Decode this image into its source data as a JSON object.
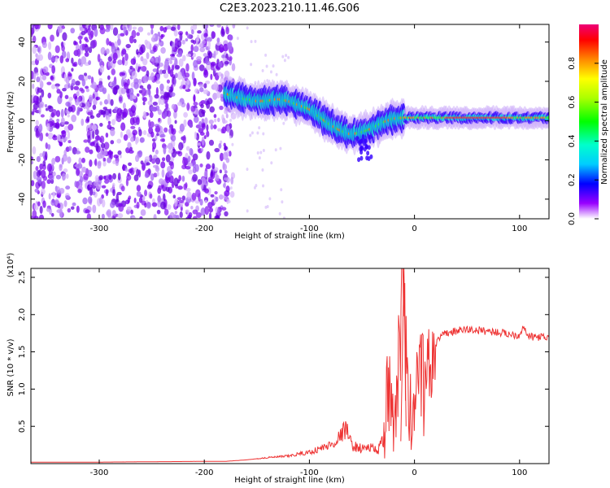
{
  "title": "C2E3.2023.210.11.46.G06",
  "chart_data": [
    {
      "type": "heatmap",
      "xlabel": "Height of straight line (km)",
      "ylabel": "Frequency (Hz)",
      "xlim": [
        -365,
        128
      ],
      "ylim": [
        -50,
        49
      ],
      "x_ticks": [
        -300,
        -200,
        -100,
        0,
        100
      ],
      "y_ticks": [
        -40,
        -20,
        0,
        20,
        40
      ],
      "colorbar": {
        "label": "Normalized spectral amplitude",
        "range": [
          0,
          1
        ],
        "ticks": [
          0.0,
          0.2,
          0.4,
          0.6,
          0.8
        ]
      },
      "noise_region_x": [
        -365,
        -178
      ],
      "signal_track": [
        {
          "x": -180,
          "y": 14
        },
        {
          "x": -170,
          "y": 12
        },
        {
          "x": -160,
          "y": 11
        },
        {
          "x": -150,
          "y": 10
        },
        {
          "x": -140,
          "y": 10
        },
        {
          "x": -130,
          "y": 11
        },
        {
          "x": -120,
          "y": 10
        },
        {
          "x": -110,
          "y": 8
        },
        {
          "x": -100,
          "y": 6
        },
        {
          "x": -90,
          "y": 2
        },
        {
          "x": -80,
          "y": -2
        },
        {
          "x": -70,
          "y": -5
        },
        {
          "x": -60,
          "y": -7
        },
        {
          "x": -50,
          "y": -6
        },
        {
          "x": -40,
          "y": -4
        },
        {
          "x": -30,
          "y": -1
        },
        {
          "x": -20,
          "y": 1
        },
        {
          "x": -10,
          "y": 1.5
        },
        {
          "x": 0,
          "y": 1.5
        },
        {
          "x": 20,
          "y": 1.5
        },
        {
          "x": 40,
          "y": 1.5
        },
        {
          "x": 60,
          "y": 1.5
        },
        {
          "x": 80,
          "y": 1.5
        },
        {
          "x": 100,
          "y": 1.5
        },
        {
          "x": 128,
          "y": 1.5
        }
      ]
    },
    {
      "type": "line",
      "xlabel": "Height of straight line (km)",
      "ylabel": "SNR (10 * v/v)",
      "y_scale_label": "(x10⁴)",
      "xlim": [
        -365,
        128
      ],
      "ylim": [
        0,
        2.62
      ],
      "x_ticks": [
        -300,
        -200,
        -100,
        0,
        100
      ],
      "y_ticks": [
        0.5,
        1.0,
        1.5,
        2.0,
        2.5
      ],
      "series": [
        {
          "color": "#ee3333",
          "x": [
            -365,
            -300,
            -250,
            -200,
            -180,
            -160,
            -140,
            -120,
            -110,
            -100,
            -90,
            -80,
            -75,
            -70,
            -65,
            -60,
            -55,
            -50,
            -45,
            -40,
            -35,
            -30,
            -25,
            -20,
            -15,
            -10,
            -5,
            0,
            5,
            10,
            15,
            20,
            25,
            30,
            40,
            50,
            60,
            70,
            80,
            90,
            100,
            104,
            106,
            110,
            120,
            128
          ],
          "y": [
            0.02,
            0.02,
            0.025,
            0.03,
            0.03,
            0.05,
            0.08,
            0.1,
            0.13,
            0.15,
            0.2,
            0.25,
            0.3,
            0.38,
            0.48,
            0.25,
            0.22,
            0.2,
            0.22,
            0.2,
            0.18,
            0.3,
            1.0,
            0.7,
            1.5,
            2.6,
            0.6,
            1.0,
            1.3,
            1.2,
            1.4,
            1.6,
            1.7,
            1.75,
            1.78,
            1.8,
            1.79,
            1.78,
            1.76,
            1.74,
            1.72,
            1.88,
            1.74,
            1.7,
            1.7,
            1.68
          ]
        }
      ]
    }
  ]
}
